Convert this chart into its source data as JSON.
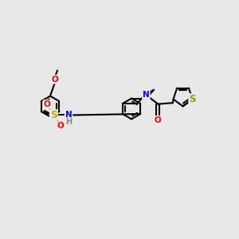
{
  "background_color": "#e8e8e8",
  "bond_color": "#000000",
  "bond_width": 1.5,
  "atom_colors": {
    "N": "#0000ff",
    "O": "#ff0000",
    "S_sulfo": "#ccaa00",
    "S_thio": "#999900",
    "H": "#888888"
  },
  "font_size": 7.5,
  "fig_width": 3.0,
  "fig_height": 3.0,
  "dpi": 100
}
